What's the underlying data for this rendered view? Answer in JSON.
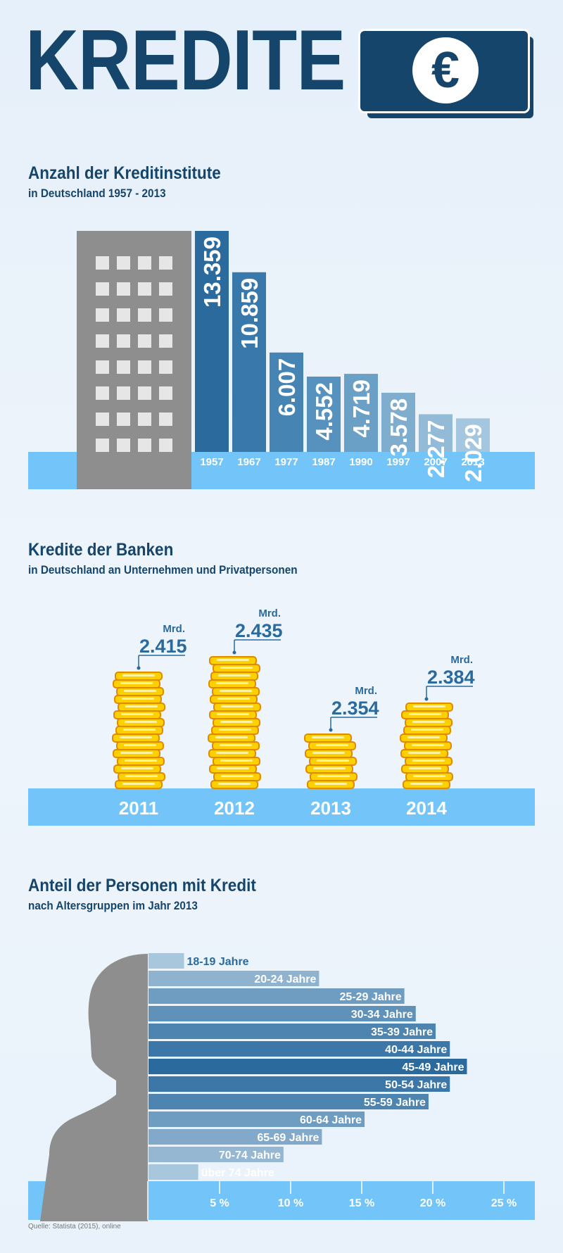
{
  "header": {
    "title": "KREDITE",
    "currency_symbol": "€",
    "icon": "euro-banknote-icon"
  },
  "colors": {
    "dark_blue": "#15456a",
    "light_blue": "#73c4f8",
    "gray": "#8e8e8e"
  },
  "chart_data": [
    {
      "type": "bar",
      "title": "Anzahl der Kreditinstitute",
      "subtitle": "in Deutschland 1957 - 2013",
      "categories": [
        "1957",
        "1967",
        "1977",
        "1987",
        "1990",
        "1997",
        "2007",
        "2013"
      ],
      "values": [
        13359,
        10859,
        6007,
        4552,
        4719,
        3578,
        2277,
        2029
      ],
      "value_labels": [
        "13.359",
        "10.859",
        "6.007",
        "4.552",
        "4.719",
        "3.578",
        "2.277",
        "2.029"
      ],
      "bar_colors": [
        "#2a6a9c",
        "#3878aa",
        "#4584b3",
        "#5791bd",
        "#6a9fc6",
        "#7fadce",
        "#93bad6",
        "#a4c6de"
      ],
      "icon": "office-building-icon"
    },
    {
      "type": "bar",
      "title": "Kredite der Banken",
      "subtitle": "in Deutschland an Unternehmen und Privatpersonen",
      "categories": [
        "2011",
        "2012",
        "2013",
        "2014"
      ],
      "values": [
        2415,
        2435,
        2354,
        2384
      ],
      "value_labels": [
        "2.415",
        "2.435",
        "2.354",
        "2.384"
      ],
      "unit": "Mrd.",
      "icon": "coin-stack-icon"
    },
    {
      "type": "bar",
      "orientation": "horizontal",
      "title": "Anteil der Personen mit Kredit",
      "subtitle": "nach Altersgruppen im Jahr 2013",
      "categories": [
        "18-19 Jahre",
        "20-24 Jahre",
        "25-29 Jahre",
        "30-34 Jahre",
        "35-39 Jahre",
        "40-44 Jahre",
        "45-49 Jahre",
        "50-54 Jahre",
        "55-59 Jahre",
        "60-64 Jahre",
        "65-69 Jahre",
        "70-74 Jahre",
        "über 74 Jahre"
      ],
      "values": [
        2.5,
        12,
        18,
        18.8,
        20.2,
        21.2,
        22.4,
        21.2,
        19.7,
        15.2,
        12.2,
        9.5,
        3.5
      ],
      "xlim": [
        0,
        27
      ],
      "xticks": [
        5,
        10,
        15,
        20,
        25
      ],
      "xtick_labels": [
        "5 %",
        "10 %",
        "15 %",
        "20 %",
        "25 %"
      ],
      "bar_colors": [
        "#a8c6dc",
        "#8fb3cf",
        "#6f9dc2",
        "#5f91b9",
        "#4d84b0",
        "#3c77a7",
        "#2a6a9c",
        "#3c77a7",
        "#4d84b0",
        "#6f9dc2",
        "#82a9ca",
        "#95b7d2",
        "#a8c6dc"
      ],
      "icon": "person-silhouette-icon"
    }
  ],
  "footer": {
    "source": "Quelle: Statista (2015), online"
  }
}
